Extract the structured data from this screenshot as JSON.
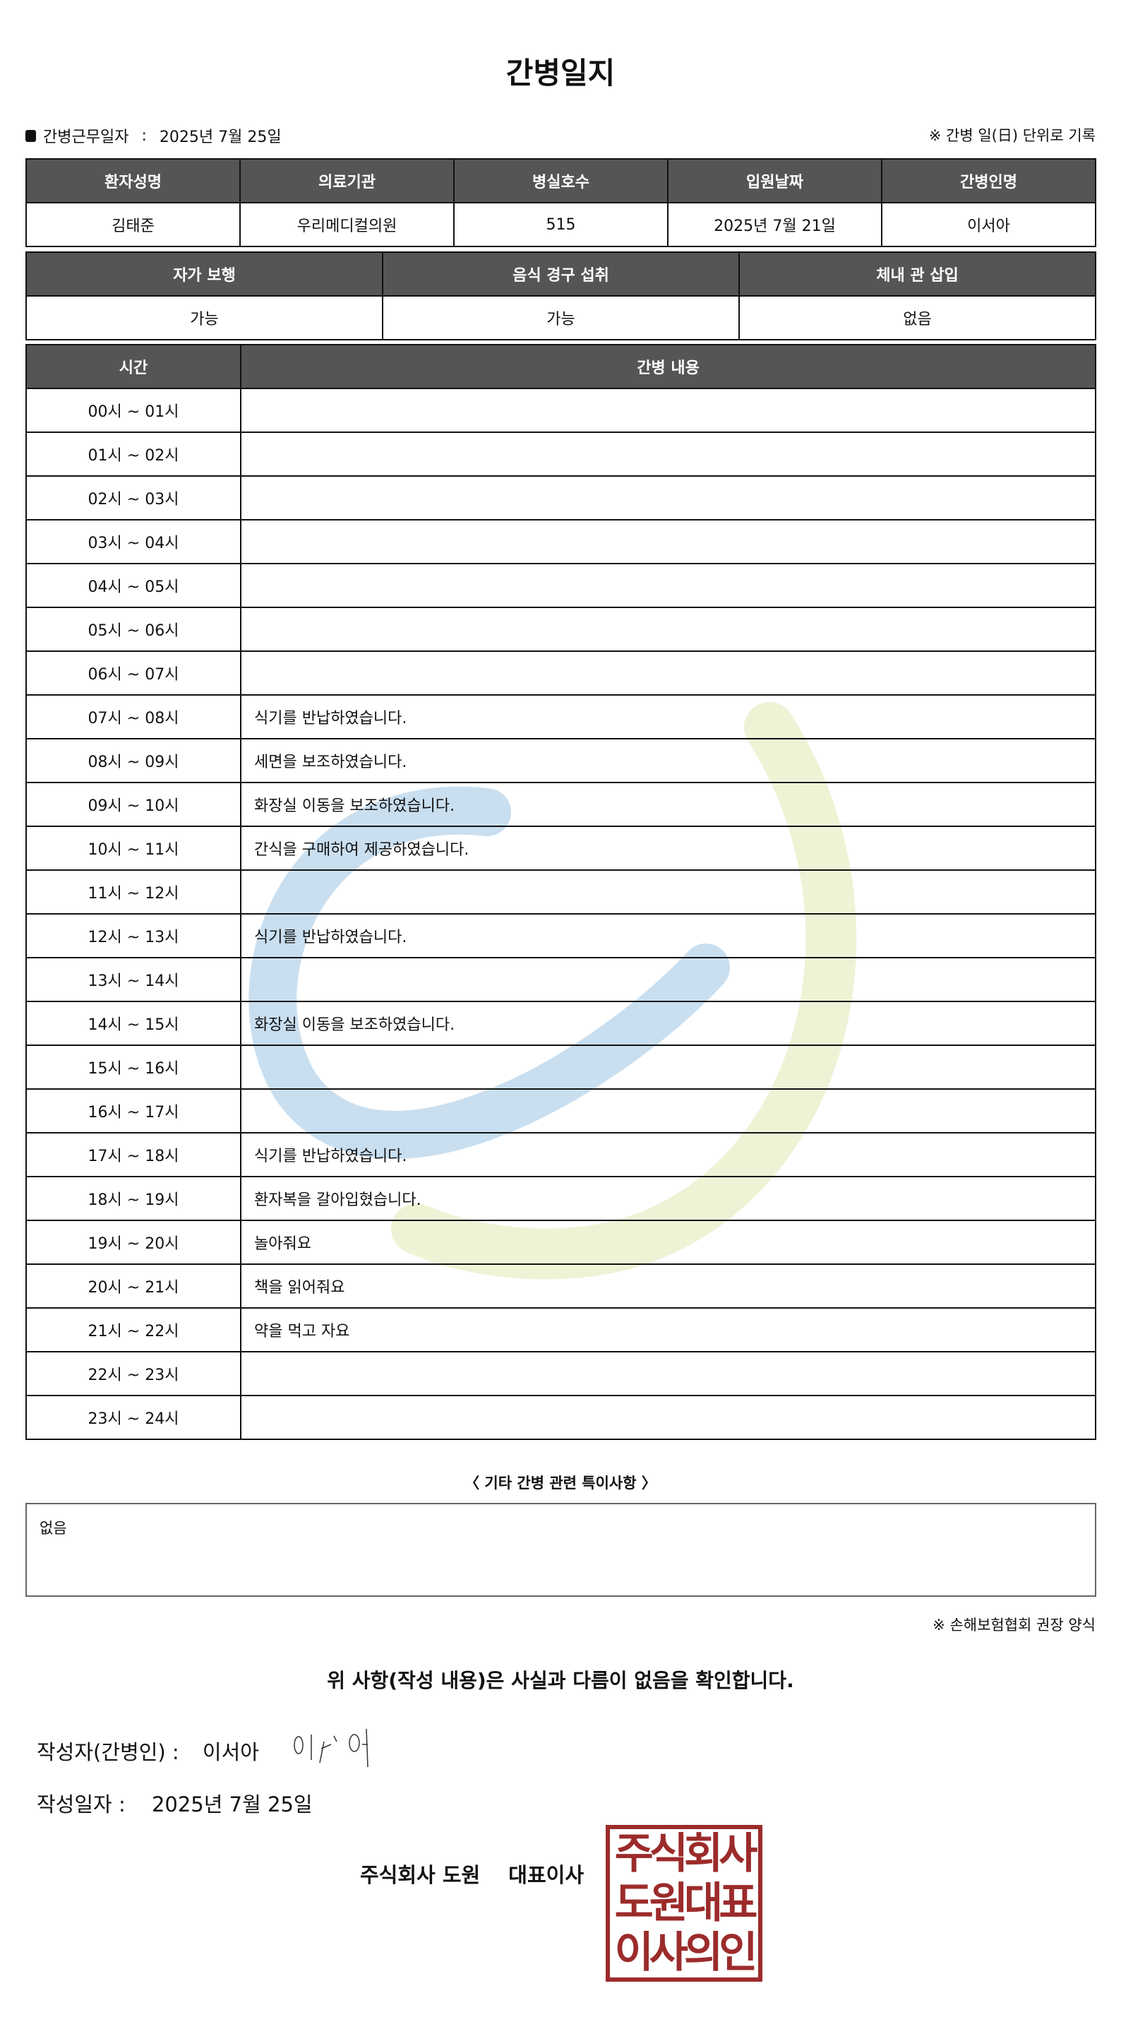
{
  "title": "간병일지",
  "info": {
    "work_date_label": "간병근무일자",
    "separator": ":",
    "work_date": "2025년 7월 25일",
    "note": "※ 간병 일(日) 단위로 기록"
  },
  "patient_table": {
    "headers": [
      "환자성명",
      "의료기관",
      "병실호수",
      "입원날짜",
      "간병인명"
    ],
    "values": [
      "김태준",
      "우리메디컬의원",
      "515",
      "2025년 7월 21일",
      "이서아"
    ]
  },
  "status_table": {
    "headers": [
      "자가 보행",
      "음식 경구 섭취",
      "체내 관 삽입"
    ],
    "values": [
      "가능",
      "가능",
      "없음"
    ]
  },
  "care_log": {
    "headers": [
      "시간",
      "간병 내용"
    ],
    "rows": [
      {
        "time": "00시 ~ 01시",
        "content": ""
      },
      {
        "time": "01시 ~ 02시",
        "content": ""
      },
      {
        "time": "02시 ~ 03시",
        "content": ""
      },
      {
        "time": "03시 ~ 04시",
        "content": ""
      },
      {
        "time": "04시 ~ 05시",
        "content": ""
      },
      {
        "time": "05시 ~ 06시",
        "content": ""
      },
      {
        "time": "06시 ~ 07시",
        "content": ""
      },
      {
        "time": "07시 ~ 08시",
        "content": "식기를 반납하였습니다."
      },
      {
        "time": "08시 ~ 09시",
        "content": "세면을 보조하였습니다."
      },
      {
        "time": "09시 ~ 10시",
        "content": "화장실 이동을 보조하였습니다."
      },
      {
        "time": "10시 ~ 11시",
        "content": "간식을 구매하여 제공하였습니다."
      },
      {
        "time": "11시 ~ 12시",
        "content": ""
      },
      {
        "time": "12시 ~ 13시",
        "content": "식기를 반납하였습니다."
      },
      {
        "time": "13시 ~ 14시",
        "content": ""
      },
      {
        "time": "14시 ~ 15시",
        "content": "화장실 이동을 보조하였습니다."
      },
      {
        "time": "15시 ~ 16시",
        "content": ""
      },
      {
        "time": "16시 ~ 17시",
        "content": ""
      },
      {
        "time": "17시 ~ 18시",
        "content": "식기를 반납하였습니다."
      },
      {
        "time": "18시 ~ 19시",
        "content": "환자복을 갈아입혔습니다."
      },
      {
        "time": "19시 ~ 20시",
        "content": "놀아줘요"
      },
      {
        "time": "20시 ~ 21시",
        "content": "책을 읽어줘요"
      },
      {
        "time": "21시 ~ 22시",
        "content": "약을 먹고 자요"
      },
      {
        "time": "22시 ~ 23시",
        "content": ""
      },
      {
        "time": "23시 ~ 24시",
        "content": ""
      }
    ]
  },
  "etc": {
    "title": "〈 기타 간병 관련 특이사항 〉",
    "content": "없음"
  },
  "form_note": "※ 손해보험협회 권장 양식",
  "confirm": "위 사항(작성 내용)은 사실과 다름이 없음을 확인합니다.",
  "writer": {
    "label": "작성자(간병인) :",
    "name": "이서아",
    "signature": "이서아"
  },
  "written_date": {
    "label": "작성일자 :",
    "value": "2025년 7월 25일"
  },
  "company": {
    "name": "주식회사 도원",
    "role": "대표이사"
  },
  "stamp": {
    "lines": [
      "주식회사",
      "도원대표",
      "이사의인"
    ]
  },
  "colors": {
    "header_bg": "#555555",
    "stamp": "#9c2b2b",
    "watermark_blue": "#c9dff0",
    "watermark_green": "#eef3d6"
  }
}
